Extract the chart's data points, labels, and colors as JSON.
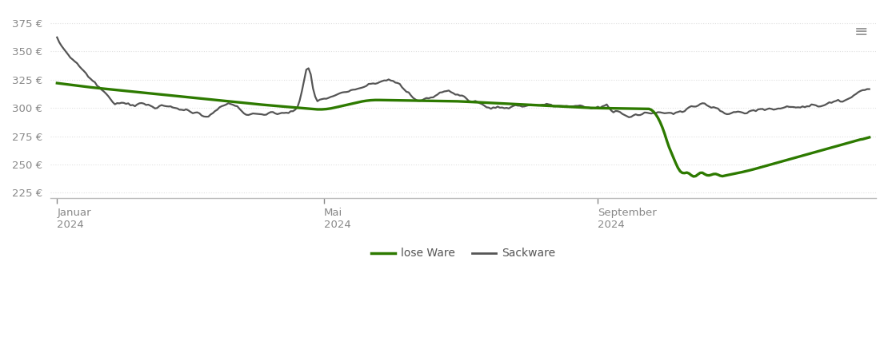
{
  "background_color": "#ffffff",
  "plot_bg_color": "#ffffff",
  "grid_color": "#e0e0e0",
  "ylim": [
    220,
    385
  ],
  "yticks": [
    225,
    250,
    275,
    300,
    325,
    350,
    375
  ],
  "lose_ware_color": "#2d7a00",
  "sackware_color": "#555555",
  "lose_ware_label": "lose Ware",
  "sackware_label": "Sackware",
  "menu_icon_color": "#999999",
  "x_tick_labels": [
    "Januar\n2024",
    "Mai\n2024",
    "September\n2024"
  ]
}
